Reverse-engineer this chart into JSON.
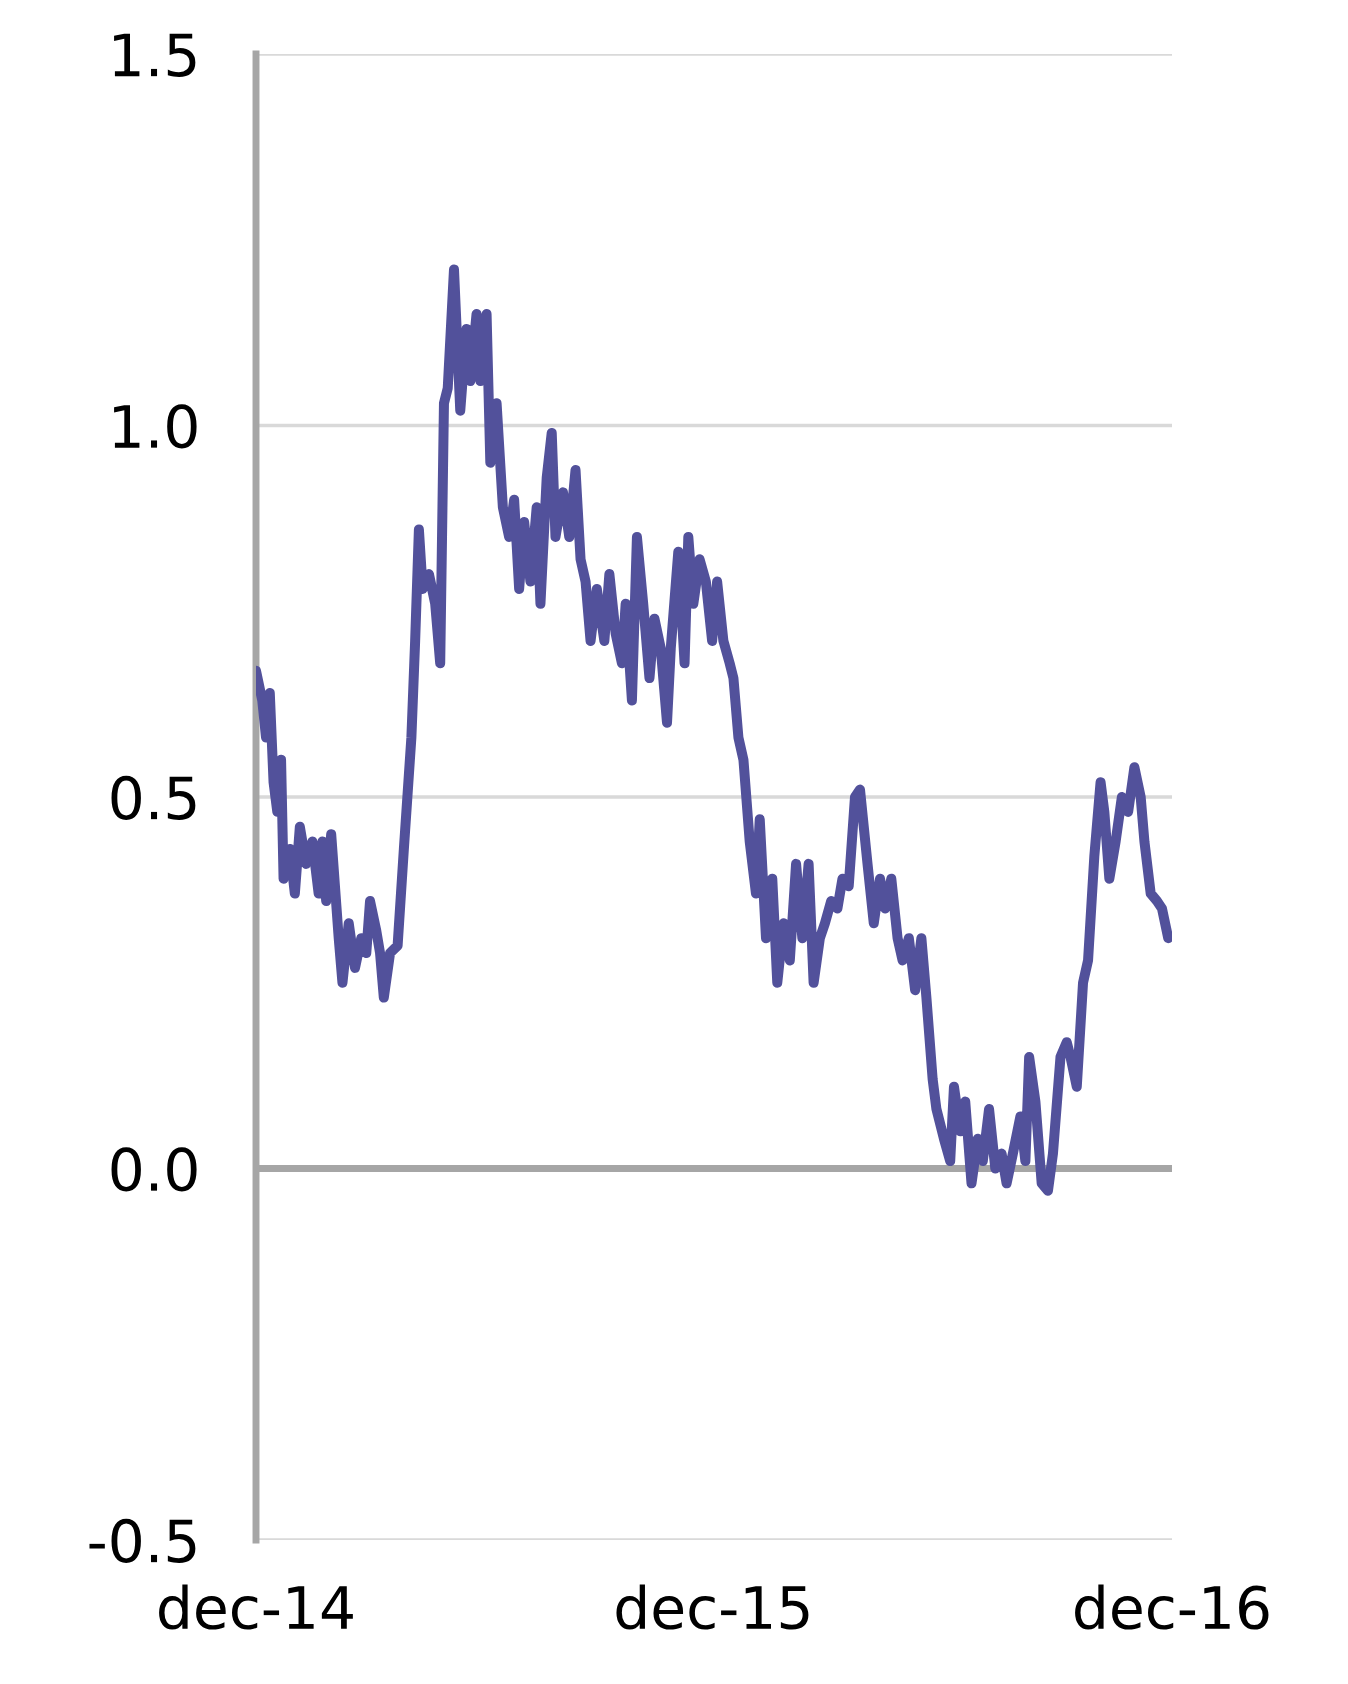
{
  "chart_data": {
    "type": "line",
    "x": [
      "2014-12-01",
      "2014-12-06",
      "2014-12-09",
      "2014-12-12",
      "2014-12-15",
      "2014-12-18",
      "2014-12-21",
      "2014-12-23",
      "2014-12-28",
      "2015-01-01",
      "2015-01-05",
      "2015-01-10",
      "2015-01-15",
      "2015-01-20",
      "2015-01-23",
      "2015-01-26",
      "2015-01-30",
      "2015-02-05",
      "2015-02-08",
      "2015-02-13",
      "2015-02-18",
      "2015-02-23",
      "2015-02-27",
      "2015-03-02",
      "2015-03-07",
      "2015-03-10",
      "2015-03-13",
      "2015-03-18",
      "2015-03-24",
      "2015-03-29",
      "2015-04-04",
      "2015-04-07",
      "2015-04-10",
      "2015-04-13",
      "2015-04-18",
      "2015-04-23",
      "2015-04-27",
      "2015-04-30",
      "2015-05-03",
      "2015-05-08",
      "2015-05-13",
      "2015-05-18",
      "2015-05-21",
      "2015-05-26",
      "2015-05-29",
      "2015-06-03",
      "2015-06-06",
      "2015-06-11",
      "2015-06-16",
      "2015-06-21",
      "2015-06-25",
      "2015-06-29",
      "2015-07-03",
      "2015-07-08",
      "2015-07-13",
      "2015-07-16",
      "2015-07-21",
      "2015-07-25",
      "2015-07-28",
      "2015-08-03",
      "2015-08-08",
      "2015-08-13",
      "2015-08-17",
      "2015-08-21",
      "2015-08-25",
      "2015-08-30",
      "2015-09-05",
      "2015-09-09",
      "2015-09-14",
      "2015-09-19",
      "2015-09-22",
      "2015-09-27",
      "2015-10-01",
      "2015-10-06",
      "2015-10-11",
      "2015-10-15",
      "2015-10-20",
      "2015-10-25",
      "2015-10-28",
      "2015-11-03",
      "2015-11-08",
      "2015-11-11",
      "2015-11-15",
      "2015-11-20",
      "2015-11-25",
      "2015-11-30",
      "2015-12-04",
      "2015-12-09",
      "2015-12-14",
      "2015-12-17",
      "2015-12-21",
      "2015-12-25",
      "2015-12-30",
      "2016-01-04",
      "2016-01-07",
      "2016-01-12",
      "2016-01-17",
      "2016-01-21",
      "2016-01-26",
      "2016-01-31",
      "2016-02-05",
      "2016-02-10",
      "2016-02-15",
      "2016-02-19",
      "2016-02-24",
      "2016-02-28",
      "2016-03-04",
      "2016-03-09",
      "2016-03-13",
      "2016-03-18",
      "2016-03-23",
      "2016-03-27",
      "2016-04-02",
      "2016-04-07",
      "2016-04-12",
      "2016-04-16",
      "2016-04-21",
      "2016-04-26",
      "2016-04-30",
      "2016-05-05",
      "2016-05-10",
      "2016-05-15",
      "2016-05-19",
      "2016-05-24",
      "2016-05-27",
      "2016-06-02",
      "2016-06-07",
      "2016-06-10",
      "2016-06-15",
      "2016-06-19",
      "2016-06-24",
      "2016-06-29",
      "2016-07-03",
      "2016-07-08",
      "2016-07-13",
      "2016-07-18",
      "2016-07-22",
      "2016-07-27",
      "2016-08-02",
      "2016-08-06",
      "2016-08-09",
      "2016-08-14",
      "2016-08-19",
      "2016-08-24",
      "2016-08-28",
      "2016-09-03",
      "2016-09-08",
      "2016-09-11",
      "2016-09-16",
      "2016-09-21",
      "2016-09-25",
      "2016-09-30",
      "2016-10-05",
      "2016-10-08",
      "2016-10-12",
      "2016-10-17",
      "2016-10-22",
      "2016-10-27",
      "2016-11-01",
      "2016-11-06",
      "2016-11-09",
      "2016-11-14",
      "2016-11-19",
      "2016-11-23",
      "2016-11-28"
    ],
    "series": [
      {
        "color": "#52519b",
        "values": [
          0.67,
          0.63,
          0.58,
          0.64,
          0.52,
          0.48,
          0.55,
          0.39,
          0.43,
          0.37,
          0.46,
          0.41,
          0.44,
          0.37,
          0.44,
          0.36,
          0.45,
          0.31,
          0.25,
          0.33,
          0.27,
          0.31,
          0.29,
          0.36,
          0.32,
          0.29,
          0.23,
          0.29,
          0.3,
          0.43,
          0.58,
          0.71,
          0.86,
          0.78,
          0.8,
          0.76,
          0.68,
          1.03,
          1.05,
          1.21,
          1.02,
          1.13,
          1.06,
          1.15,
          1.06,
          1.15,
          0.95,
          1.03,
          0.89,
          0.85,
          0.9,
          0.78,
          0.87,
          0.79,
          0.89,
          0.76,
          0.93,
          0.99,
          0.85,
          0.91,
          0.85,
          0.94,
          0.82,
          0.79,
          0.71,
          0.78,
          0.71,
          0.8,
          0.72,
          0.68,
          0.76,
          0.63,
          0.85,
          0.76,
          0.66,
          0.74,
          0.7,
          0.6,
          0.7,
          0.83,
          0.68,
          0.85,
          0.76,
          0.82,
          0.79,
          0.71,
          0.79,
          0.71,
          0.68,
          0.66,
          0.58,
          0.55,
          0.44,
          0.37,
          0.47,
          0.31,
          0.39,
          0.25,
          0.33,
          0.28,
          0.41,
          0.31,
          0.41,
          0.25,
          0.31,
          0.33,
          0.36,
          0.35,
          0.39,
          0.38,
          0.5,
          0.51,
          0.41,
          0.33,
          0.39,
          0.35,
          0.39,
          0.31,
          0.28,
          0.31,
          0.24,
          0.31,
          0.23,
          0.12,
          0.08,
          0.04,
          0.01,
          0.11,
          0.05,
          0.09,
          -0.02,
          0.04,
          0.01,
          0.08,
          0.0,
          0.02,
          -0.02,
          0.02,
          0.07,
          0.01,
          0.15,
          0.09,
          -0.02,
          -0.03,
          0.02,
          0.15,
          0.17,
          0.15,
          0.11,
          0.25,
          0.28,
          0.42,
          0.52,
          0.48,
          0.39,
          0.44,
          0.5,
          0.48,
          0.54,
          0.5,
          0.44,
          0.37,
          0.36,
          0.35,
          0.31
        ]
      }
    ],
    "xlim": [
      "2014-12-01",
      "2016-12-01"
    ],
    "xticks": [
      {
        "value": "2014-12-01",
        "label": "dec-14"
      },
      {
        "value": "2015-12-01",
        "label": "dec-15"
      },
      {
        "value": "2016-12-01",
        "label": "dec-16"
      }
    ],
    "ylim": [
      -0.5,
      1.5
    ],
    "yticks": [
      {
        "value": -0.5,
        "label": "-0.5"
      },
      {
        "value": 0,
        "label": "0.0"
      },
      {
        "value": 0.5,
        "label": "0.5"
      },
      {
        "value": 1,
        "label": "1.0"
      },
      {
        "value": 1.5,
        "label": "1.5"
      }
    ],
    "grid": "y",
    "ref_lines": [
      {
        "axis": "y",
        "value": 0,
        "color": "#a6a6a6"
      }
    ]
  }
}
